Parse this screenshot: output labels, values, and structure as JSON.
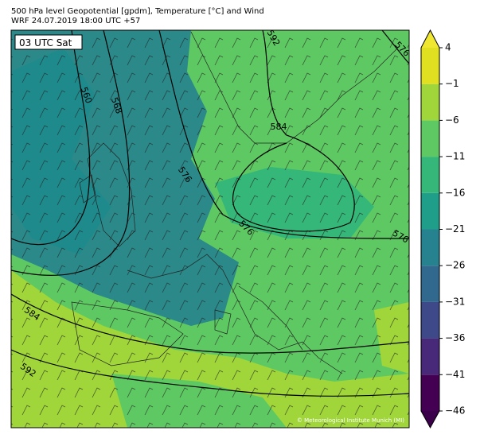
{
  "header": {
    "title": "500 hPa level Geopotential [gpdm], Temperature [°C] and Wind",
    "subtitle": "WRF 24.07.2019 18:00 UTC +57"
  },
  "map": {
    "time_label": "03 UTC Sat",
    "contour_labels": [
      "560",
      "568",
      "576",
      "576",
      "584",
      "592",
      "576",
      "576",
      "584",
      "592"
    ],
    "copyright": "© Meteorological Institute Munich (MI)"
  },
  "colorbar": {
    "ticks": [
      4,
      {
        "value": -1,
        "label": "−1"
      },
      {
        "value": -6,
        "label": "−6"
      },
      {
        "value": -11,
        "label": "−11"
      },
      {
        "value": -16,
        "label": "−16"
      },
      {
        "value": -21,
        "label": "−21"
      },
      {
        "value": -26,
        "label": "−26"
      },
      {
        "value": -31,
        "label": "−31"
      },
      {
        "value": -36,
        "label": "−36"
      },
      {
        "value": -41,
        "label": "−41"
      },
      {
        "value": -46,
        "label": "−46"
      }
    ],
    "colors": [
      "#440154",
      "#482878",
      "#3e4989",
      "#31688e",
      "#26828e",
      "#1f9e89",
      "#35b779",
      "#5ec962",
      "#a0d63a",
      "#e0e020"
    ],
    "extend_colors": [
      "#3a004a",
      "#f0e830"
    ]
  }
}
